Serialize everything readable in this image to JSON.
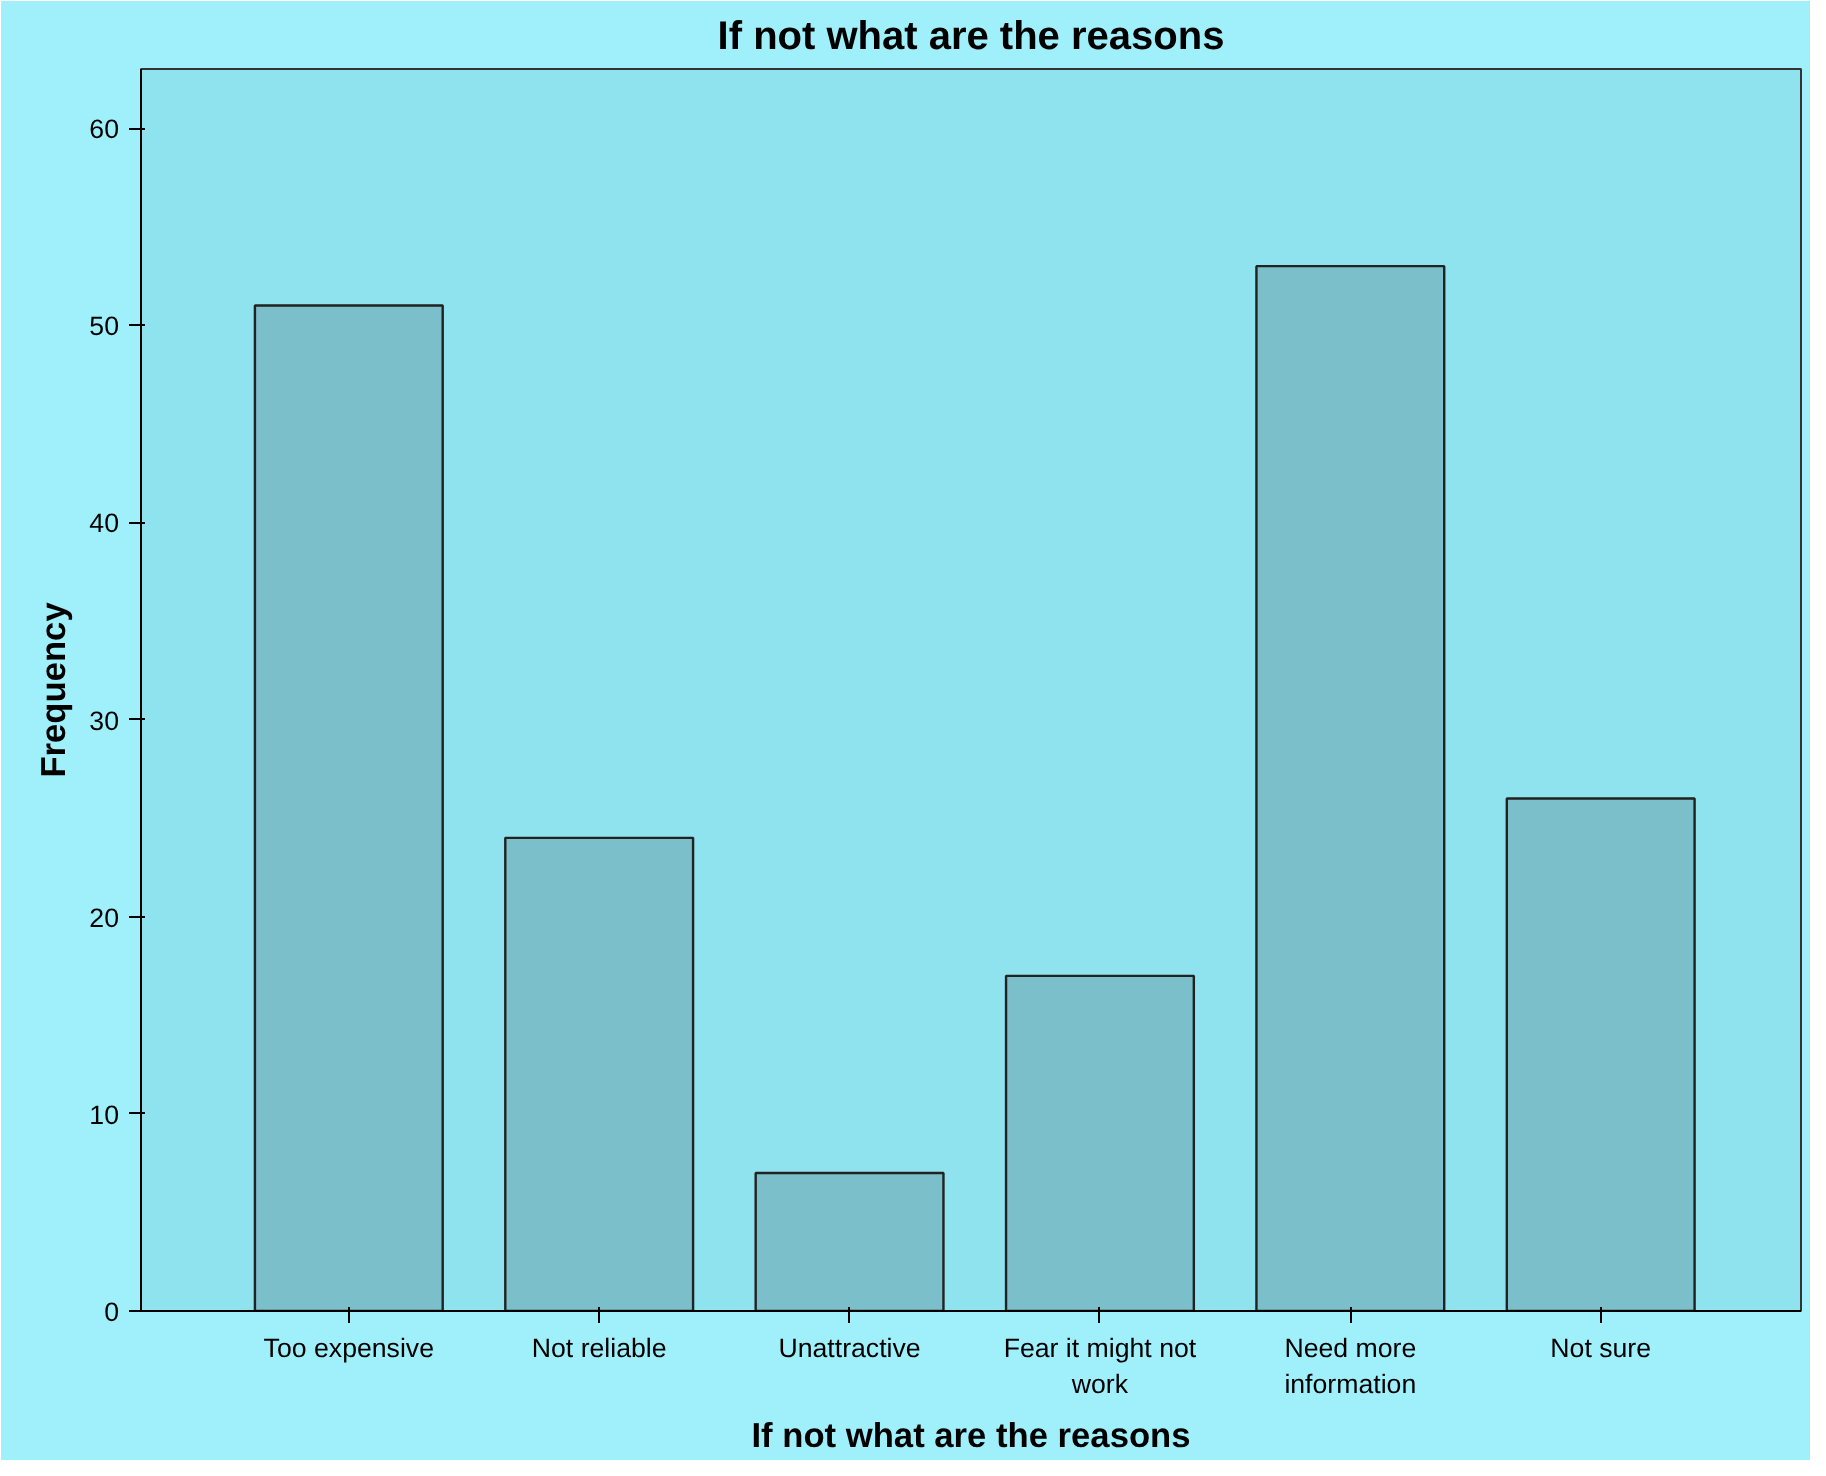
{
  "chart_data": {
    "type": "bar",
    "title": "If not what are the reasons",
    "xlabel": "If not what are the reasons",
    "ylabel": "Frequency",
    "categories": [
      "Too expensive",
      "Not reliable",
      "Unattractive",
      "Fear it might not work",
      "Need more information",
      "Not sure"
    ],
    "values": [
      51,
      24,
      7,
      17,
      53,
      26
    ],
    "color": "#7bbfca",
    "ylim": [
      0,
      63
    ],
    "yticks": [
      0,
      10,
      20,
      30,
      40,
      50,
      60
    ],
    "grid": false
  }
}
